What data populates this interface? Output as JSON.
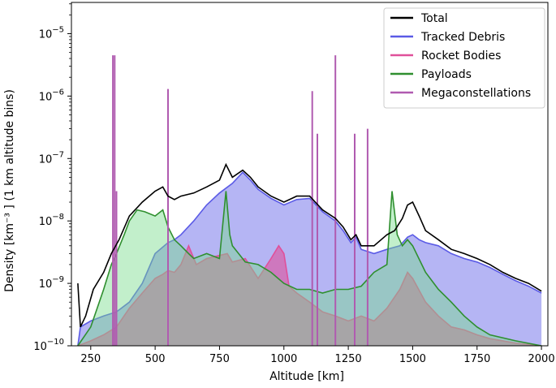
{
  "chart_data": {
    "type": "area",
    "title": "",
    "xlabel": "Altitude [km]",
    "ylabel": "Density [km⁻³ ] (1 km altitude bins)",
    "xlim": [
      175,
      2025
    ],
    "ylim_log10": [
      -10,
      -4.5
    ],
    "yscale": "log",
    "grid": false,
    "legend_position": "top-right",
    "x_ticks": [
      250,
      500,
      750,
      1000,
      1250,
      1500,
      1750,
      2000
    ],
    "x_tick_labels": [
      "250",
      "500",
      "750",
      "1000",
      "1250",
      "1500",
      "1750",
      "2000"
    ],
    "y_ticks_log10": [
      -10,
      -9,
      -8,
      -7,
      -6,
      -5
    ],
    "y_tick_labels": [
      {
        "base": "10",
        "exp": "−10"
      },
      {
        "base": "10",
        "exp": "−9"
      },
      {
        "base": "10",
        "exp": "−8"
      },
      {
        "base": "10",
        "exp": "−7"
      },
      {
        "base": "10",
        "exp": "−6"
      },
      {
        "base": "10",
        "exp": "−5"
      }
    ],
    "series": [
      {
        "name": "Total",
        "style": "line",
        "color": "#000000",
        "points": [
          [
            200,
            1e-09
          ],
          [
            210,
            2e-10
          ],
          [
            230,
            3e-10
          ],
          [
            260,
            8e-10
          ],
          [
            300,
            1.5e-09
          ],
          [
            330,
            3e-09
          ],
          [
            360,
            5e-09
          ],
          [
            400,
            1.2e-08
          ],
          [
            450,
            2e-08
          ],
          [
            500,
            3e-08
          ],
          [
            530,
            3.5e-08
          ],
          [
            550,
            2.5e-08
          ],
          [
            575,
            2.2e-08
          ],
          [
            600,
            2.5e-08
          ],
          [
            650,
            2.8e-08
          ],
          [
            700,
            3.5e-08
          ],
          [
            750,
            4.5e-08
          ],
          [
            775,
            8e-08
          ],
          [
            800,
            5e-08
          ],
          [
            840,
            6.5e-08
          ],
          [
            870,
            5e-08
          ],
          [
            900,
            3.5e-08
          ],
          [
            950,
            2.5e-08
          ],
          [
            1000,
            2e-08
          ],
          [
            1050,
            2.5e-08
          ],
          [
            1100,
            2.5e-08
          ],
          [
            1150,
            1.5e-08
          ],
          [
            1200,
            1.1e-08
          ],
          [
            1230,
            8e-09
          ],
          [
            1260,
            5e-09
          ],
          [
            1280,
            6e-09
          ],
          [
            1300,
            4e-09
          ],
          [
            1350,
            4e-09
          ],
          [
            1400,
            6e-09
          ],
          [
            1430,
            7e-09
          ],
          [
            1460,
            1.1e-08
          ],
          [
            1480,
            1.8e-08
          ],
          [
            1500,
            2e-08
          ],
          [
            1525,
            1.2e-08
          ],
          [
            1550,
            7e-09
          ],
          [
            1600,
            5e-09
          ],
          [
            1650,
            3.5e-09
          ],
          [
            1700,
            3e-09
          ],
          [
            1750,
            2.5e-09
          ],
          [
            1800,
            2e-09
          ],
          [
            1850,
            1.5e-09
          ],
          [
            1900,
            1.2e-09
          ],
          [
            1950,
            1e-09
          ],
          [
            2000,
            7.5e-10
          ]
        ]
      },
      {
        "name": "Tracked Debris",
        "style": "area",
        "color": "#5b5be6",
        "fill": "rgba(90,90,230,0.45)",
        "points": [
          [
            200,
            1e-10
          ],
          [
            210,
            2e-10
          ],
          [
            250,
            2.5e-10
          ],
          [
            300,
            3e-10
          ],
          [
            350,
            3.5e-10
          ],
          [
            400,
            5e-10
          ],
          [
            450,
            1e-09
          ],
          [
            500,
            3e-09
          ],
          [
            550,
            4.5e-09
          ],
          [
            575,
            5e-09
          ],
          [
            600,
            6e-09
          ],
          [
            650,
            1e-08
          ],
          [
            700,
            1.8e-08
          ],
          [
            750,
            2.8e-08
          ],
          [
            800,
            4e-08
          ],
          [
            840,
            6e-08
          ],
          [
            870,
            4.5e-08
          ],
          [
            900,
            3.2e-08
          ],
          [
            950,
            2.3e-08
          ],
          [
            1000,
            1.8e-08
          ],
          [
            1050,
            2.2e-08
          ],
          [
            1100,
            2.3e-08
          ],
          [
            1150,
            1.4e-08
          ],
          [
            1200,
            1e-08
          ],
          [
            1230,
            7e-09
          ],
          [
            1260,
            4.5e-09
          ],
          [
            1280,
            5.5e-09
          ],
          [
            1300,
            3.5e-09
          ],
          [
            1350,
            3e-09
          ],
          [
            1400,
            3.5e-09
          ],
          [
            1450,
            4e-09
          ],
          [
            1480,
            5.5e-09
          ],
          [
            1500,
            6e-09
          ],
          [
            1525,
            5e-09
          ],
          [
            1550,
            4.5e-09
          ],
          [
            1600,
            4e-09
          ],
          [
            1650,
            3e-09
          ],
          [
            1700,
            2.5e-09
          ],
          [
            1750,
            2.2e-09
          ],
          [
            1800,
            1.8e-09
          ],
          [
            1850,
            1.4e-09
          ],
          [
            1900,
            1.1e-09
          ],
          [
            1950,
            9e-10
          ],
          [
            2000,
            7e-10
          ]
        ]
      },
      {
        "name": "Rocket Bodies",
        "style": "area",
        "color": "#e0509a",
        "fill": "rgba(224,80,154,0.6)",
        "points": [
          [
            200,
            1e-10
          ],
          [
            250,
            1.2e-10
          ],
          [
            300,
            1.5e-10
          ],
          [
            350,
            2e-10
          ],
          [
            400,
            4e-10
          ],
          [
            450,
            7e-10
          ],
          [
            500,
            1.2e-09
          ],
          [
            530,
            1.4e-09
          ],
          [
            550,
            1.6e-09
          ],
          [
            575,
            1.5e-09
          ],
          [
            600,
            2e-09
          ],
          [
            630,
            4e-09
          ],
          [
            660,
            2e-09
          ],
          [
            700,
            2.5e-09
          ],
          [
            750,
            2.8e-09
          ],
          [
            780,
            3e-09
          ],
          [
            800,
            2.2e-09
          ],
          [
            850,
            2.5e-09
          ],
          [
            900,
            1.2e-09
          ],
          [
            950,
            2.5e-09
          ],
          [
            980,
            4e-09
          ],
          [
            1000,
            3e-09
          ],
          [
            1020,
            9e-10
          ],
          [
            1050,
            7e-10
          ],
          [
            1100,
            5e-10
          ],
          [
            1150,
            3.5e-10
          ],
          [
            1200,
            3e-10
          ],
          [
            1250,
            2.5e-10
          ],
          [
            1300,
            3e-10
          ],
          [
            1350,
            2.5e-10
          ],
          [
            1400,
            4e-10
          ],
          [
            1450,
            8e-10
          ],
          [
            1480,
            1.5e-09
          ],
          [
            1500,
            1.2e-09
          ],
          [
            1550,
            5e-10
          ],
          [
            1600,
            3e-10
          ],
          [
            1650,
            2e-10
          ],
          [
            1700,
            1.8e-10
          ],
          [
            1750,
            1.5e-10
          ],
          [
            1800,
            1.3e-10
          ],
          [
            1850,
            1.2e-10
          ],
          [
            1900,
            1.1e-10
          ],
          [
            2000,
            1e-10
          ]
        ]
      },
      {
        "name": "Payloads",
        "style": "area",
        "color": "#2f8f2f",
        "fill": "rgba(120,220,140,0.45)",
        "points": [
          [
            200,
            1e-10
          ],
          [
            250,
            2e-10
          ],
          [
            300,
            8e-10
          ],
          [
            330,
            2e-09
          ],
          [
            350,
            3e-09
          ],
          [
            380,
            6e-09
          ],
          [
            400,
            1e-08
          ],
          [
            430,
            1.5e-08
          ],
          [
            460,
            1.4e-08
          ],
          [
            500,
            1.2e-08
          ],
          [
            530,
            1.5e-08
          ],
          [
            550,
            8e-09
          ],
          [
            575,
            5e-09
          ],
          [
            600,
            4e-09
          ],
          [
            630,
            3e-09
          ],
          [
            650,
            2.5e-09
          ],
          [
            700,
            3e-09
          ],
          [
            750,
            2.5e-09
          ],
          [
            775,
            3e-08
          ],
          [
            790,
            6e-09
          ],
          [
            800,
            4e-09
          ],
          [
            850,
            2.2e-09
          ],
          [
            900,
            2e-09
          ],
          [
            950,
            1.5e-09
          ],
          [
            1000,
            1e-09
          ],
          [
            1050,
            8e-10
          ],
          [
            1100,
            8e-10
          ],
          [
            1150,
            7e-10
          ],
          [
            1200,
            8e-10
          ],
          [
            1250,
            8e-10
          ],
          [
            1300,
            9e-10
          ],
          [
            1350,
            1.5e-09
          ],
          [
            1400,
            2e-09
          ],
          [
            1420,
            3e-08
          ],
          [
            1440,
            6e-09
          ],
          [
            1460,
            4e-09
          ],
          [
            1480,
            5e-09
          ],
          [
            1500,
            4e-09
          ],
          [
            1550,
            1.5e-09
          ],
          [
            1600,
            8e-10
          ],
          [
            1650,
            5e-10
          ],
          [
            1700,
            3e-10
          ],
          [
            1750,
            2e-10
          ],
          [
            1800,
            1.5e-10
          ],
          [
            1900,
            1.2e-10
          ],
          [
            2000,
            1e-10
          ]
        ]
      },
      {
        "name": "Megaconstellations",
        "style": "spikes",
        "color": "#b05bb0",
        "points": [
          [
            336,
            4.5e-06
          ],
          [
            343,
            4.5e-06
          ],
          [
            350,
            3e-08
          ],
          [
            550,
            1.3e-06
          ],
          [
            1110,
            1.2e-06
          ],
          [
            1130,
            2.5e-07
          ],
          [
            1200,
            4.5e-06
          ],
          [
            1275,
            2.5e-07
          ],
          [
            1325,
            3e-07
          ]
        ]
      }
    ]
  }
}
